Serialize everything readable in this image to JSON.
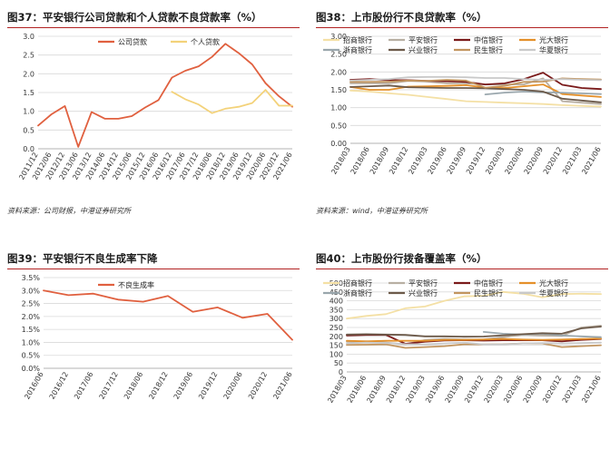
{
  "chart_data": [
    {
      "id": "c37",
      "type": "line",
      "title": "图37：平安银行公司贷款和个人贷款不良贷款率（%）",
      "source": "资料来源：公司财报，中港证券研究所",
      "xlabel": "",
      "ylabel": "",
      "categories": [
        "2011/12",
        "2012/06",
        "2012/12",
        "2013/06",
        "2013/12",
        "2014/06",
        "2014/12",
        "2015/06",
        "2015/12",
        "2016/06",
        "2016/12",
        "2017/06",
        "2017/12",
        "2018/06",
        "2018/12",
        "2019/06",
        "2019/12",
        "2020/06",
        "2020/12",
        "2021/06"
      ],
      "ylim": [
        0,
        3.0
      ],
      "yticks": [
        "0.0",
        "0.5",
        "1.0",
        "1.5",
        "2.0",
        "2.5",
        "3.0"
      ],
      "legend_position": "top",
      "series": [
        {
          "name": "公司贷款",
          "color": "#e0603f",
          "values": [
            0.62,
            0.92,
            1.14,
            0.05,
            0.98,
            0.8,
            0.8,
            0.87,
            1.1,
            1.3,
            1.9,
            2.08,
            2.2,
            2.45,
            2.8,
            2.55,
            2.25,
            1.75,
            1.4,
            1.12
          ]
        },
        {
          "name": "个人贷款",
          "color": "#f3d27a",
          "values": [
            null,
            null,
            null,
            null,
            null,
            null,
            null,
            null,
            null,
            null,
            1.52,
            1.32,
            1.18,
            0.95,
            1.07,
            1.12,
            1.22,
            1.57,
            1.15,
            1.15
          ]
        }
      ]
    },
    {
      "id": "c38",
      "type": "line",
      "title": "图38：上市股份行不良贷款率（%）",
      "source": "资料来源：wind，中港证券研究所",
      "xlabel": "",
      "ylabel": "",
      "categories": [
        "2018/03",
        "2018/06",
        "2018/09",
        "2018/12",
        "2019/03",
        "2019/06",
        "2019/09",
        "2019/12",
        "2020/03",
        "2020/06",
        "2020/09",
        "2020/12",
        "2021/03",
        "2021/06"
      ],
      "ylim": [
        0,
        3.0
      ],
      "yticks": [
        "0.00",
        "0.50",
        "1.00",
        "1.50",
        "2.00",
        "2.50",
        "3.00"
      ],
      "legend_position": "top",
      "series": [
        {
          "name": "招商银行",
          "color": "#f4e0a5",
          "values": [
            1.48,
            1.45,
            1.4,
            1.36,
            1.3,
            1.24,
            1.18,
            1.16,
            1.14,
            1.12,
            1.1,
            1.07,
            1.05,
            1.03
          ]
        },
        {
          "name": "平安银行",
          "color": "#b8afa3",
          "values": [
            1.68,
            1.68,
            1.68,
            1.75,
            1.73,
            1.68,
            1.68,
            1.65,
            1.65,
            1.65,
            1.82,
            1.18,
            1.14,
            1.1
          ]
        },
        {
          "name": "中信银行",
          "color": "#7a1a1a",
          "values": [
            1.78,
            1.8,
            1.77,
            1.77,
            1.75,
            1.74,
            1.72,
            1.65,
            1.68,
            1.8,
            1.98,
            1.64,
            1.55,
            1.52
          ]
        },
        {
          "name": "光大银行",
          "color": "#e4902a",
          "values": [
            1.58,
            1.5,
            1.5,
            1.59,
            1.6,
            1.61,
            1.63,
            1.56,
            1.55,
            1.6,
            1.65,
            1.38,
            1.34,
            1.3
          ]
        },
        {
          "name": "浙商银行",
          "color": "#9aa7ad",
          "values": [
            null,
            null,
            null,
            null,
            null,
            null,
            null,
            1.37,
            1.42,
            1.45,
            1.43,
            1.42,
            1.4,
            1.38
          ]
        },
        {
          "name": "兴业银行",
          "color": "#6c5a4a",
          "values": [
            1.58,
            1.6,
            1.62,
            1.57,
            1.56,
            1.55,
            1.55,
            1.54,
            1.52,
            1.5,
            1.45,
            1.25,
            1.2,
            1.15
          ]
        },
        {
          "name": "民生银行",
          "color": "#c2955f",
          "values": [
            1.72,
            1.72,
            1.73,
            1.76,
            1.75,
            1.78,
            1.76,
            1.56,
            1.61,
            1.72,
            1.73,
            1.82,
            1.8,
            1.79
          ]
        },
        {
          "name": "华夏银行",
          "color": "#c9c9c9",
          "values": [
            1.76,
            1.78,
            1.8,
            1.85,
            1.86,
            1.86,
            1.85,
            1.83,
            1.83,
            1.8,
            1.78,
            1.8,
            1.78,
            1.77
          ]
        }
      ]
    },
    {
      "id": "c39",
      "type": "line",
      "title": "图39：平安银行不良生成率下降",
      "source": "",
      "xlabel": "",
      "ylabel": "",
      "categories": [
        "2016/06",
        "2016/12",
        "2017/06",
        "2017/12",
        "2018/06",
        "2018/12",
        "2019/06",
        "2019/12",
        "2020/06",
        "2020/12",
        "2021/06"
      ],
      "ylim": [
        0,
        3.5
      ],
      "yticks": [
        "0.0%",
        "0.5%",
        "1.0%",
        "1.5%",
        "2.0%",
        "2.5%",
        "3.0%",
        "3.5%"
      ],
      "legend_position": "top",
      "series": [
        {
          "name": "不良生成率",
          "color": "#e0603f",
          "values": [
            3.0,
            2.82,
            2.88,
            2.65,
            2.57,
            2.79,
            2.18,
            2.35,
            1.95,
            2.1,
            1.1
          ]
        }
      ]
    },
    {
      "id": "c40",
      "type": "line",
      "title": "图40：上市股份行拨备覆盖率（%）",
      "source": "",
      "xlabel": "",
      "ylabel": "",
      "categories": [
        "2018/03",
        "2018/06",
        "2018/09",
        "2018/12",
        "2019/03",
        "2019/06",
        "2019/09",
        "2019/12",
        "2020/03",
        "2020/06",
        "2020/09",
        "2020/12",
        "2021/03",
        "2021/06"
      ],
      "ylim": [
        0,
        500
      ],
      "yticks": [
        "0",
        "50",
        "100",
        "150",
        "200",
        "250",
        "300",
        "350",
        "400",
        "450",
        "500"
      ],
      "legend_position": "top",
      "series": [
        {
          "name": "招商银行",
          "color": "#f4e0a5",
          "values": [
            300,
            315,
            325,
            358,
            368,
            400,
            425,
            428,
            450,
            440,
            420,
            438,
            440,
            438
          ]
        },
        {
          "name": "平安银行",
          "color": "#b8afa3",
          "values": [
            170,
            172,
            165,
            155,
            180,
            185,
            183,
            183,
            195,
            210,
            205,
            202,
            250,
            260
          ]
        },
        {
          "name": "中信银行",
          "color": "#7a1a1a",
          "values": [
            205,
            208,
            208,
            158,
            170,
            177,
            178,
            176,
            178,
            178,
            178,
            172,
            180,
            185
          ]
        },
        {
          "name": "光大银行",
          "color": "#e4902a",
          "values": [
            175,
            172,
            175,
            175,
            175,
            180,
            180,
            182,
            185,
            182,
            180,
            182,
            185,
            187
          ]
        },
        {
          "name": "浙商银行",
          "color": "#9aa7ad",
          "values": [
            null,
            null,
            null,
            null,
            null,
            null,
            null,
            225,
            215,
            210,
            215,
            205,
            200,
            195
          ]
        },
        {
          "name": "兴业银行",
          "color": "#6c5a4a",
          "values": [
            210,
            212,
            210,
            208,
            200,
            200,
            198,
            199,
            206,
            212,
            218,
            215,
            245,
            255
          ]
        },
        {
          "name": "民生银行",
          "color": "#c2955f",
          "values": [
            152,
            153,
            155,
            135,
            140,
            145,
            155,
            155,
            156,
            160,
            160,
            140,
            145,
            150
          ]
        },
        {
          "name": "华夏银行",
          "color": "#c9c9c9",
          "values": [
            160,
            165,
            162,
            156,
            155,
            160,
            165,
            155,
            155,
            160,
            162,
            160,
            162,
            165
          ]
        }
      ]
    }
  ]
}
